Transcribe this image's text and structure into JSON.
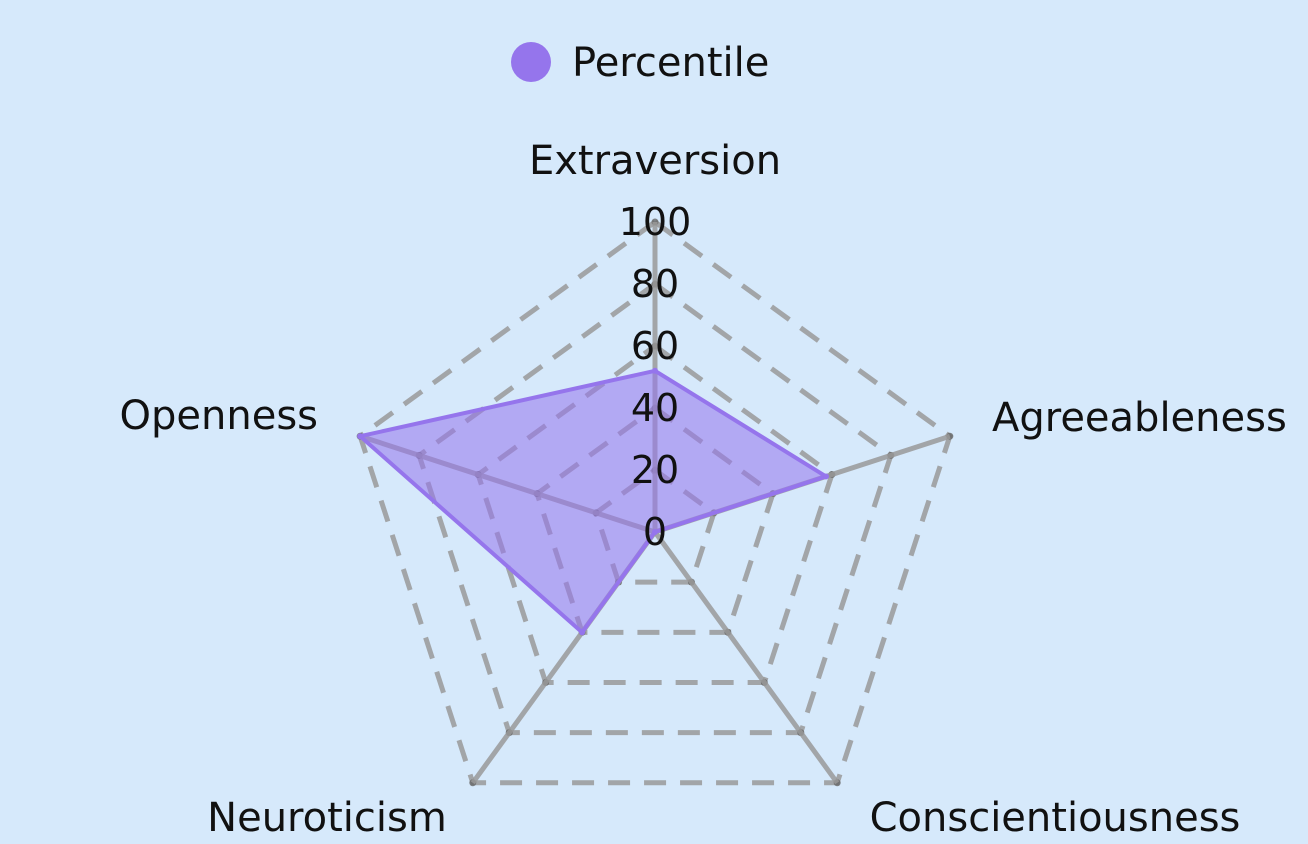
{
  "chart_data": {
    "type": "radar",
    "categories": [
      "Extraversion",
      "Agreeableness",
      "Conscientiousness",
      "Neuroticism",
      "Openness"
    ],
    "series": [
      {
        "name": "Percentile",
        "values": [
          52,
          58,
          0,
          40,
          100
        ],
        "color": "#9575ec"
      }
    ],
    "rlim": [
      0,
      100
    ],
    "ticks": [
      0,
      20,
      40,
      60,
      80,
      100
    ],
    "tick_labels": [
      "0",
      "20",
      "40",
      "60",
      "80",
      "100"
    ],
    "grid": true,
    "grid_style": "dashed",
    "grid_color": "#999999",
    "background": "#d6e9fb",
    "legend_position": "top"
  }
}
